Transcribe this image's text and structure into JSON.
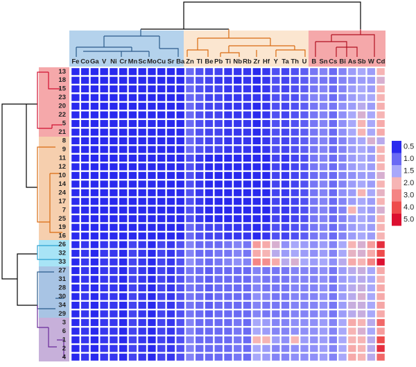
{
  "chart_data": {
    "type": "heatmap",
    "columns": [
      "Fe",
      "Co",
      "Ga",
      "V",
      "Ni",
      "Cr",
      "Mn",
      "Sc",
      "Mo",
      "Cu",
      "Sr",
      "Ba",
      "Zn",
      "Tl",
      "Be",
      "Pb",
      "Ti",
      "Nb",
      "Rb",
      "Zr",
      "Hf",
      "Y",
      "Ta",
      "Th",
      "U",
      "B",
      "Sn",
      "Cs",
      "Bi",
      "As",
      "Sb",
      "W",
      "Cd"
    ],
    "rows": [
      "13",
      "18",
      "15",
      "23",
      "20",
      "22",
      "5",
      "21",
      "8",
      "9",
      "11",
      "12",
      "10",
      "14",
      "24",
      "17",
      "7",
      "25",
      "19",
      "16",
      "26",
      "32",
      "33",
      "27",
      "31",
      "28",
      "30",
      "34",
      "29",
      "3",
      "6",
      "1",
      "2",
      "4"
    ],
    "values": [
      [
        0.3,
        0.3,
        0.3,
        0.4,
        0.3,
        0.3,
        0.4,
        0.3,
        0.3,
        0.4,
        0.3,
        0.4,
        1.0,
        0.8,
        0.7,
        0.7,
        0.6,
        0.6,
        0.6,
        0.5,
        0.6,
        0.8,
        0.7,
        0.8,
        0.9,
        1.1,
        1.2,
        1.0,
        1.2,
        1.4,
        1.5,
        1.4,
        2.0
      ],
      [
        0.3,
        0.3,
        0.3,
        0.3,
        0.3,
        0.3,
        0.4,
        0.3,
        0.3,
        0.3,
        0.3,
        0.4,
        0.9,
        0.8,
        0.7,
        0.6,
        0.6,
        0.5,
        0.6,
        0.5,
        0.6,
        0.8,
        0.7,
        0.8,
        0.9,
        1.1,
        1.1,
        1.0,
        1.2,
        1.3,
        1.4,
        1.4,
        1.8
      ],
      [
        0.4,
        0.3,
        0.4,
        0.4,
        0.3,
        0.4,
        0.4,
        0.3,
        0.4,
        0.4,
        0.4,
        0.5,
        1.0,
        0.8,
        0.7,
        0.7,
        0.6,
        0.6,
        0.6,
        0.5,
        0.6,
        0.8,
        0.7,
        0.8,
        0.9,
        1.1,
        1.2,
        1.0,
        1.2,
        1.4,
        1.5,
        1.4,
        2.0
      ],
      [
        0.3,
        0.3,
        0.3,
        0.4,
        0.3,
        0.3,
        0.4,
        0.3,
        0.3,
        0.4,
        0.3,
        0.4,
        1.0,
        0.9,
        0.7,
        0.7,
        0.6,
        0.6,
        0.6,
        0.6,
        0.6,
        0.8,
        0.8,
        0.8,
        1.0,
        1.2,
        1.2,
        1.0,
        1.2,
        1.4,
        1.5,
        1.5,
        2.0
      ],
      [
        0.4,
        0.3,
        0.4,
        0.4,
        0.3,
        0.4,
        0.4,
        0.3,
        0.4,
        0.4,
        0.4,
        0.5,
        1.0,
        0.8,
        0.7,
        0.7,
        0.6,
        0.6,
        0.6,
        0.5,
        0.6,
        0.8,
        0.7,
        0.8,
        0.9,
        1.1,
        1.2,
        1.1,
        1.3,
        1.4,
        1.6,
        1.4,
        2.1
      ],
      [
        0.3,
        0.3,
        0.3,
        0.4,
        0.3,
        0.3,
        0.4,
        0.3,
        0.3,
        0.4,
        0.3,
        0.4,
        1.0,
        0.8,
        0.7,
        0.7,
        0.6,
        0.6,
        0.6,
        0.5,
        0.6,
        0.8,
        0.7,
        0.8,
        0.9,
        1.1,
        1.2,
        1.0,
        1.3,
        1.5,
        1.8,
        1.5,
        2.0
      ],
      [
        0.4,
        0.3,
        0.4,
        0.4,
        0.3,
        0.4,
        0.4,
        0.3,
        0.4,
        0.4,
        0.4,
        0.5,
        1.0,
        0.8,
        0.7,
        0.7,
        0.6,
        0.6,
        0.6,
        0.5,
        0.6,
        0.8,
        0.7,
        0.8,
        0.9,
        1.1,
        1.2,
        1.0,
        1.3,
        1.5,
        2.0,
        1.5,
        2.2
      ],
      [
        0.3,
        0.3,
        0.3,
        0.4,
        0.3,
        0.3,
        0.4,
        0.3,
        0.3,
        0.4,
        0.3,
        0.4,
        1.0,
        0.8,
        0.7,
        0.7,
        0.6,
        0.6,
        0.6,
        0.5,
        0.6,
        0.8,
        0.7,
        0.8,
        0.9,
        1.1,
        1.2,
        1.0,
        1.3,
        1.5,
        2.0,
        1.5,
        2.2
      ],
      [
        0.3,
        0.3,
        0.3,
        0.4,
        0.3,
        0.3,
        0.4,
        0.3,
        0.3,
        0.4,
        0.3,
        0.4,
        1.0,
        0.8,
        0.7,
        0.7,
        0.6,
        0.6,
        0.6,
        0.5,
        0.6,
        0.8,
        0.7,
        0.8,
        0.9,
        1.1,
        1.2,
        1.0,
        1.2,
        1.4,
        1.5,
        1.8,
        1.6
      ],
      [
        0.3,
        0.3,
        0.3,
        0.4,
        0.3,
        0.3,
        0.4,
        0.3,
        0.3,
        0.4,
        0.3,
        0.4,
        1.0,
        0.8,
        0.7,
        0.7,
        0.6,
        0.6,
        0.6,
        0.5,
        0.6,
        0.8,
        0.7,
        0.8,
        0.9,
        1.1,
        1.2,
        1.0,
        1.2,
        1.4,
        1.5,
        1.4,
        2.0
      ],
      [
        0.3,
        0.3,
        0.3,
        0.4,
        0.3,
        0.3,
        0.4,
        0.3,
        0.3,
        0.4,
        0.3,
        0.4,
        0.8,
        0.6,
        0.5,
        0.5,
        0.4,
        0.4,
        0.4,
        0.4,
        0.5,
        0.7,
        0.6,
        0.7,
        0.8,
        1.1,
        1.2,
        1.0,
        1.2,
        1.4,
        1.5,
        1.4,
        2.0
      ],
      [
        0.3,
        0.3,
        0.3,
        0.4,
        0.3,
        0.3,
        0.4,
        0.3,
        0.3,
        0.4,
        0.3,
        0.4,
        0.8,
        0.6,
        0.5,
        0.5,
        0.4,
        0.4,
        0.4,
        0.4,
        0.5,
        0.7,
        0.6,
        0.7,
        0.8,
        1.1,
        1.2,
        1.0,
        1.2,
        1.4,
        1.5,
        1.4,
        2.0
      ],
      [
        0.3,
        0.3,
        0.3,
        0.4,
        0.3,
        0.3,
        0.4,
        0.3,
        0.3,
        0.4,
        0.3,
        0.4,
        0.8,
        0.6,
        0.5,
        0.5,
        0.4,
        0.4,
        0.4,
        0.4,
        0.5,
        0.7,
        0.6,
        0.7,
        0.8,
        1.0,
        1.1,
        1.0,
        1.2,
        1.3,
        1.4,
        1.4,
        1.8
      ],
      [
        0.3,
        0.3,
        0.3,
        0.4,
        0.3,
        0.3,
        0.4,
        0.3,
        0.3,
        0.4,
        0.3,
        0.4,
        0.8,
        0.6,
        0.5,
        0.5,
        0.4,
        0.4,
        0.4,
        0.4,
        0.5,
        0.7,
        0.6,
        0.7,
        0.8,
        1.1,
        1.2,
        1.0,
        1.2,
        1.4,
        1.5,
        1.4,
        2.0
      ],
      [
        0.4,
        0.3,
        0.4,
        0.4,
        0.3,
        0.4,
        0.4,
        0.3,
        0.4,
        0.4,
        0.4,
        0.5,
        0.8,
        0.6,
        0.5,
        0.5,
        0.4,
        0.4,
        0.4,
        0.4,
        0.5,
        0.7,
        0.6,
        0.7,
        0.8,
        1.1,
        1.2,
        1.0,
        1.3,
        1.4,
        2.0,
        1.5,
        1.9
      ],
      [
        0.3,
        0.3,
        0.3,
        0.4,
        0.3,
        0.3,
        0.4,
        0.3,
        0.3,
        0.4,
        0.3,
        0.4,
        0.8,
        0.6,
        0.5,
        0.5,
        0.4,
        0.4,
        0.4,
        0.4,
        0.5,
        0.7,
        0.6,
        0.7,
        0.8,
        1.1,
        1.2,
        1.0,
        1.2,
        1.4,
        1.5,
        1.4,
        2.0
      ],
      [
        0.4,
        0.3,
        0.4,
        0.4,
        0.3,
        0.4,
        0.4,
        0.3,
        0.4,
        0.4,
        0.4,
        0.5,
        0.8,
        0.6,
        0.5,
        0.5,
        0.4,
        0.4,
        0.4,
        0.4,
        0.5,
        0.7,
        0.6,
        0.7,
        0.8,
        1.1,
        1.2,
        1.0,
        1.2,
        2.0,
        1.5,
        1.4,
        1.8
      ],
      [
        0.3,
        0.3,
        0.3,
        0.4,
        0.3,
        0.3,
        0.4,
        0.3,
        0.3,
        0.4,
        0.3,
        0.4,
        0.8,
        0.6,
        0.5,
        0.5,
        0.4,
        0.4,
        0.4,
        0.4,
        0.5,
        0.7,
        0.6,
        0.7,
        0.8,
        1.1,
        1.2,
        1.0,
        1.2,
        1.4,
        1.5,
        1.4,
        2.0
      ],
      [
        0.4,
        0.3,
        0.4,
        0.4,
        0.3,
        0.4,
        0.4,
        0.3,
        0.4,
        0.4,
        0.4,
        0.5,
        1.0,
        0.8,
        0.7,
        0.7,
        0.6,
        0.6,
        0.6,
        0.5,
        0.6,
        0.8,
        0.7,
        0.8,
        0.9,
        1.1,
        1.2,
        1.0,
        1.2,
        1.4,
        1.5,
        1.4,
        2.0
      ],
      [
        0.4,
        0.3,
        0.4,
        0.4,
        0.3,
        0.4,
        0.4,
        0.3,
        0.4,
        0.4,
        0.4,
        0.5,
        1.0,
        0.8,
        0.7,
        0.7,
        0.6,
        0.6,
        0.6,
        0.5,
        0.6,
        0.8,
        0.7,
        0.8,
        0.9,
        1.1,
        1.2,
        1.0,
        1.2,
        1.4,
        1.5,
        1.4,
        2.0
      ],
      [
        0.5,
        0.6,
        0.5,
        0.6,
        0.6,
        0.5,
        0.7,
        0.6,
        0.5,
        0.7,
        0.6,
        0.8,
        1.2,
        1.0,
        1.0,
        1.0,
        1.1,
        1.2,
        1.1,
        2.5,
        2.2,
        1.8,
        1.3,
        1.5,
        1.4,
        1.3,
        1.4,
        1.2,
        1.5,
        2.0,
        1.8,
        2.5,
        4.5
      ],
      [
        0.5,
        0.6,
        0.5,
        0.6,
        0.6,
        0.5,
        0.7,
        0.6,
        0.5,
        0.7,
        0.6,
        0.8,
        1.2,
        1.0,
        1.0,
        1.1,
        1.1,
        1.2,
        1.1,
        2.2,
        2.0,
        1.6,
        1.4,
        1.5,
        1.4,
        1.3,
        1.4,
        1.2,
        1.5,
        1.9,
        1.8,
        2.2,
        4.0
      ],
      [
        0.5,
        0.6,
        0.5,
        0.6,
        0.6,
        0.5,
        0.7,
        0.6,
        0.5,
        0.7,
        0.6,
        0.8,
        1.3,
        1.1,
        1.0,
        1.1,
        1.2,
        1.3,
        1.2,
        3.0,
        2.8,
        2.2,
        1.6,
        1.8,
        1.5,
        1.4,
        1.5,
        1.3,
        1.6,
        2.2,
        2.0,
        3.0,
        5.0
      ],
      [
        0.5,
        0.6,
        0.5,
        0.6,
        0.6,
        0.5,
        0.7,
        0.6,
        0.5,
        0.7,
        0.6,
        0.8,
        1.1,
        1.0,
        0.9,
        1.0,
        1.0,
        1.0,
        1.0,
        1.2,
        1.1,
        1.1,
        1.1,
        1.2,
        1.2,
        1.2,
        1.3,
        1.1,
        1.4,
        1.6,
        1.7,
        1.5,
        2.2
      ],
      [
        0.5,
        0.6,
        0.5,
        0.6,
        0.6,
        0.5,
        0.7,
        0.6,
        0.5,
        0.7,
        0.6,
        0.8,
        1.1,
        1.0,
        0.9,
        1.0,
        1.0,
        1.0,
        1.0,
        1.2,
        1.1,
        1.1,
        1.1,
        1.2,
        1.2,
        1.2,
        1.3,
        1.1,
        1.4,
        1.5,
        1.6,
        1.5,
        2.0
      ],
      [
        0.5,
        0.6,
        0.5,
        0.6,
        0.6,
        0.5,
        0.7,
        0.6,
        0.5,
        0.7,
        0.6,
        0.8,
        1.1,
        1.0,
        0.9,
        1.0,
        1.0,
        1.0,
        1.0,
        1.2,
        1.1,
        1.1,
        1.1,
        1.2,
        1.2,
        1.2,
        1.3,
        1.1,
        1.4,
        1.6,
        1.7,
        1.5,
        2.2
      ],
      [
        0.5,
        0.6,
        0.5,
        0.6,
        0.6,
        0.5,
        0.7,
        0.6,
        0.5,
        0.7,
        0.6,
        0.8,
        1.1,
        1.0,
        0.9,
        1.0,
        1.0,
        1.0,
        1.0,
        1.3,
        1.2,
        1.1,
        1.1,
        1.2,
        1.2,
        1.2,
        1.3,
        1.1,
        1.4,
        1.6,
        1.8,
        1.5,
        2.2
      ],
      [
        0.5,
        0.6,
        0.5,
        0.6,
        0.6,
        0.5,
        0.7,
        0.6,
        0.5,
        0.7,
        0.6,
        0.8,
        1.1,
        1.0,
        0.9,
        1.0,
        1.0,
        1.0,
        1.0,
        1.2,
        1.1,
        1.1,
        1.1,
        1.2,
        1.2,
        1.2,
        1.3,
        1.1,
        1.4,
        1.7,
        1.7,
        1.5,
        2.3
      ],
      [
        0.5,
        0.6,
        0.5,
        0.6,
        0.6,
        0.5,
        0.7,
        0.6,
        0.5,
        0.7,
        0.6,
        0.8,
        1.1,
        1.0,
        0.9,
        1.0,
        1.0,
        1.0,
        1.0,
        1.2,
        1.1,
        1.1,
        1.1,
        1.2,
        1.2,
        1.2,
        1.3,
        1.1,
        1.4,
        1.6,
        1.7,
        1.5,
        2.2
      ],
      [
        0.5,
        0.6,
        0.5,
        0.6,
        0.6,
        0.5,
        0.7,
        0.6,
        0.5,
        0.7,
        0.6,
        0.8,
        1.2,
        1.0,
        1.0,
        1.0,
        1.0,
        1.1,
        1.0,
        1.5,
        1.4,
        1.2,
        1.2,
        1.3,
        1.3,
        1.3,
        1.4,
        1.2,
        1.5,
        2.2,
        2.0,
        1.6,
        3.5
      ],
      [
        0.5,
        0.6,
        0.5,
        0.6,
        0.6,
        0.5,
        0.7,
        0.6,
        0.5,
        0.7,
        0.6,
        0.8,
        1.2,
        1.0,
        1.0,
        1.0,
        1.0,
        1.1,
        1.0,
        1.5,
        1.4,
        1.2,
        1.2,
        1.3,
        1.3,
        1.3,
        1.4,
        1.2,
        1.5,
        2.0,
        1.8,
        1.5,
        2.5
      ],
      [
        0.5,
        0.6,
        0.5,
        0.6,
        0.6,
        0.5,
        0.7,
        0.6,
        0.5,
        0.7,
        0.6,
        0.8,
        1.2,
        1.0,
        1.0,
        1.0,
        1.0,
        1.1,
        1.0,
        2.0,
        2.0,
        1.4,
        1.3,
        2.0,
        1.4,
        1.3,
        1.4,
        1.2,
        1.5,
        2.0,
        2.0,
        1.6,
        4.0
      ],
      [
        0.5,
        0.6,
        0.5,
        0.6,
        0.6,
        0.5,
        0.7,
        0.6,
        0.5,
        0.7,
        0.6,
        0.8,
        1.2,
        1.0,
        1.0,
        1.0,
        1.0,
        1.1,
        1.0,
        1.5,
        1.4,
        1.2,
        1.2,
        1.3,
        1.3,
        1.3,
        1.4,
        1.2,
        1.5,
        2.2,
        2.0,
        1.6,
        4.5
      ],
      [
        0.5,
        0.6,
        0.5,
        0.6,
        0.6,
        0.5,
        0.7,
        0.6,
        0.5,
        0.7,
        0.6,
        0.8,
        1.2,
        1.0,
        1.0,
        1.0,
        1.0,
        1.1,
        1.0,
        1.5,
        1.4,
        1.2,
        1.2,
        1.3,
        1.3,
        1.3,
        1.4,
        1.2,
        1.5,
        2.2,
        2.0,
        1.6,
        3.5
      ]
    ],
    "colorbar": {
      "ticks": [
        0.5,
        {
          "value": 1,
          "label": "1.0"
        },
        1.5,
        {
          "value": 2,
          "label": "2.0"
        },
        {
          "value": 3,
          "label": "3.0"
        },
        {
          "value": 4,
          "label": "4.0"
        },
        {
          "value": 5,
          "label": "5.0"
        }
      ],
      "colors": [
        "#2a2aee",
        "#6a6af4",
        "#a8a8fa",
        "#f6b4b4",
        "#f48484",
        "#ee4c4c",
        "#dc1030"
      ]
    }
  }
}
